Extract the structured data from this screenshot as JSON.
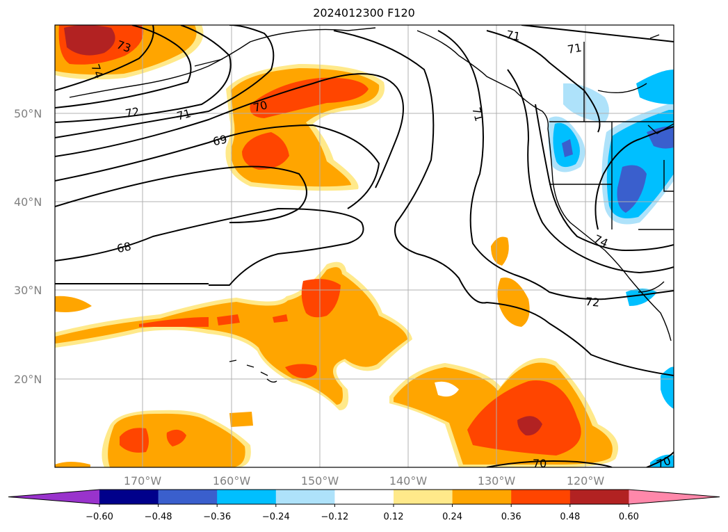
{
  "title": "2024012300 F120",
  "lat_ticks": [
    "20°N",
    "30°N",
    "40°N",
    "50°N"
  ],
  "lon_ticks": [
    "170°W",
    "160°W",
    "150°W",
    "140°W",
    "130°W",
    "120°W"
  ],
  "colorbar": {
    "tick_labels": [
      "−0.60",
      "−0.48",
      "−0.36",
      "−0.24",
      "−0.12",
      "0.12",
      "0.24",
      "0.36",
      "0.48",
      "0.60"
    ],
    "colors": [
      "#9933cc",
      "#00008b",
      "#3a5fcd",
      "#00bfff",
      "#aee2fa",
      "#ffffff",
      "#ffe98a",
      "#ffa500",
      "#ff4500",
      "#b22222",
      "#ff88aa"
    ]
  },
  "contour_labels": [
    "73",
    "74",
    "72",
    "71",
    "70",
    "69",
    "68",
    "71",
    "71",
    "71",
    "74",
    "72",
    "70",
    "70"
  ]
}
